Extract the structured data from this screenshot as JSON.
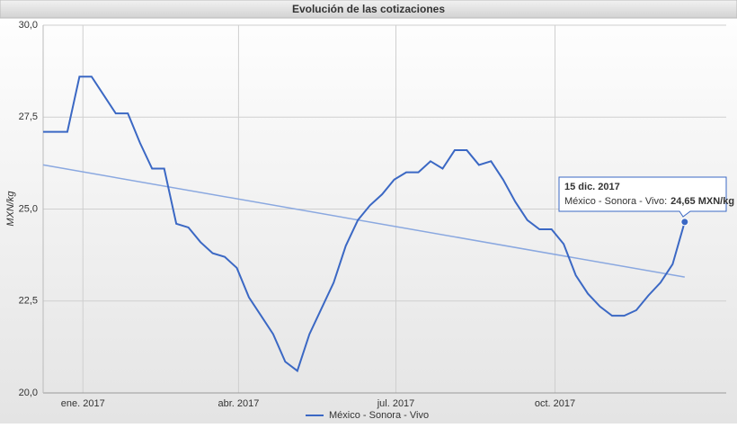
{
  "chart_data": {
    "type": "line",
    "title": "Evolución de las cotizaciones",
    "y_label": "MXN/kg",
    "x": [
      "2016-12-09",
      "2016-12-16",
      "2016-12-23",
      "2016-12-30",
      "2017-01-06",
      "2017-01-13",
      "2017-01-20",
      "2017-01-27",
      "2017-02-03",
      "2017-02-10",
      "2017-02-17",
      "2017-02-24",
      "2017-03-03",
      "2017-03-10",
      "2017-03-17",
      "2017-03-24",
      "2017-03-31",
      "2017-04-07",
      "2017-04-14",
      "2017-04-21",
      "2017-04-28",
      "2017-05-05",
      "2017-05-12",
      "2017-05-19",
      "2017-05-26",
      "2017-06-02",
      "2017-06-09",
      "2017-06-16",
      "2017-06-23",
      "2017-06-30",
      "2017-07-07",
      "2017-07-14",
      "2017-07-21",
      "2017-07-28",
      "2017-08-04",
      "2017-08-11",
      "2017-08-18",
      "2017-08-25",
      "2017-09-01",
      "2017-09-08",
      "2017-09-15",
      "2017-09-22",
      "2017-09-29",
      "2017-10-06",
      "2017-10-13",
      "2017-10-20",
      "2017-10-27",
      "2017-11-03",
      "2017-11-10",
      "2017-11-17",
      "2017-11-24",
      "2017-12-01",
      "2017-12-08",
      "2017-12-15"
    ],
    "series": [
      {
        "name": "México - Sonora - Vivo",
        "color": "#3b68c4",
        "values": [
          27.1,
          27.1,
          27.1,
          28.6,
          28.6,
          28.1,
          27.6,
          27.6,
          26.8,
          26.1,
          26.1,
          24.6,
          24.5,
          24.1,
          23.8,
          23.7,
          23.4,
          22.6,
          22.1,
          21.6,
          20.85,
          20.6,
          21.6,
          22.3,
          23.0,
          24.0,
          24.7,
          25.1,
          25.4,
          25.8,
          26.0,
          26.0,
          26.3,
          26.1,
          26.6,
          26.6,
          26.2,
          26.3,
          25.8,
          25.2,
          24.7,
          24.45,
          24.45,
          24.05,
          23.2,
          22.7,
          22.35,
          22.1,
          22.1,
          22.25,
          22.65,
          23.0,
          23.5,
          24.65
        ]
      }
    ],
    "trend_line": {
      "color": "#8aa8e0",
      "values": [
        26.2,
        23.15
      ]
    },
    "xlim": [
      "2016-12-09",
      "2018-01-08"
    ],
    "xticks": [
      {
        "value": "2017-01-01",
        "label": "ene. 2017"
      },
      {
        "value": "2017-04-01",
        "label": "abr. 2017"
      },
      {
        "value": "2017-07-01",
        "label": "jul. 2017"
      },
      {
        "value": "2017-10-01",
        "label": "oct. 2017"
      }
    ],
    "ylim": [
      20,
      30
    ],
    "yticks": [
      {
        "value": 20,
        "label": "20,0"
      },
      {
        "value": 22.5,
        "label": "22,5"
      },
      {
        "value": 25,
        "label": "25,0"
      },
      {
        "value": 27.5,
        "label": "27,5"
      },
      {
        "value": 30,
        "label": "30,0"
      }
    ],
    "grid": true,
    "tooltip": {
      "x": "2017-12-15",
      "date_label": "15 dic. 2017",
      "series_label": "México - Sonora - Vivo:",
      "value_label": "24,65 MXN/kg"
    }
  }
}
